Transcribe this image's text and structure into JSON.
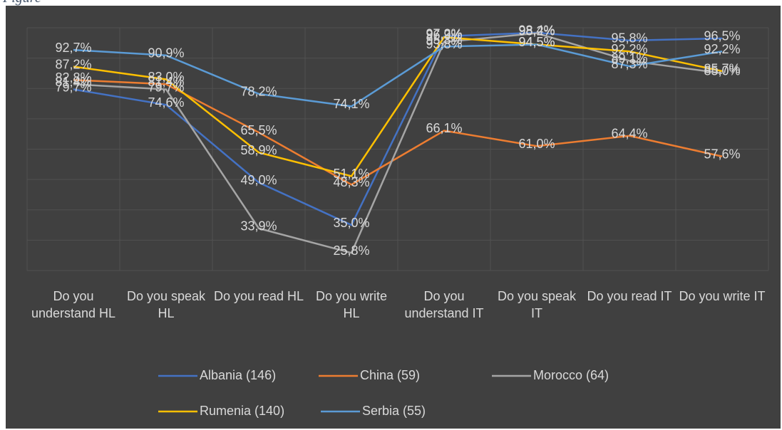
{
  "caption": "Figure",
  "chart_data": {
    "type": "line",
    "categories": [
      "Do you understand HL",
      "Do you speak HL",
      "Do you read HL",
      "Do you write HL",
      "Do you understand IT",
      "Do you speak IT",
      "Do you read IT",
      "Do you write IT"
    ],
    "ylim": [
      20,
      100
    ],
    "yticks": [
      20,
      30,
      40,
      50,
      60,
      70,
      80,
      90,
      100
    ],
    "show_tick_labels": false,
    "grid": true,
    "series": [
      {
        "name": "Albania (146)",
        "color": "#4472c4",
        "values": [
          79.7,
          74.6,
          49.0,
          35.0,
          97.2,
          98.4,
          95.8,
          96.5
        ],
        "value_labels": [
          "79,7%",
          "74,6%",
          "49,0%",
          "35,0%",
          "97,2%",
          "98,4%",
          "95,8%",
          "96,5%"
        ]
      },
      {
        "name": "China (59)",
        "color": "#ed7d31",
        "values": [
          82.8,
          81.4,
          65.5,
          48.3,
          66.1,
          61.0,
          64.4,
          57.6
        ],
        "value_labels": [
          "82,8%",
          "81,4%",
          "65,5%",
          "48,3%",
          "66,1%",
          "61,0%",
          "64,4%",
          "57,6%"
        ]
      },
      {
        "name": "Morocco  (64)",
        "color": "#a5a5a5",
        "values": [
          81.4,
          79.7,
          33.9,
          25.8,
          95.3,
          98.2,
          89.1,
          85.0
        ],
        "value_labels": [
          "81,4%",
          "79,7%",
          "33,9%",
          "25,8%",
          "95,3%",
          "98,2%",
          "89,1%",
          "85,0%"
        ]
      },
      {
        "name": "Rumenia  (140)",
        "color": "#ffc000",
        "values": [
          87.2,
          83.0,
          58.9,
          51.1,
          96.9,
          94.5,
          92.2,
          85.7
        ],
        "value_labels": [
          "87,2%",
          "83,0%",
          "58,9%",
          "51,1%",
          "96,9%",
          "94,5%",
          "92,2%",
          "85,7%"
        ]
      },
      {
        "name": "Serbia (55)",
        "color": "#5b9bd5",
        "values": [
          92.7,
          90.9,
          78.2,
          74.1,
          93.8,
          94.5,
          87.3,
          92.2
        ],
        "value_labels": [
          "92,7%",
          "90,9%",
          "78,2%",
          "74,1%",
          "93,8%",
          "94,5%",
          "87,3%",
          "92,2%"
        ]
      }
    ]
  }
}
